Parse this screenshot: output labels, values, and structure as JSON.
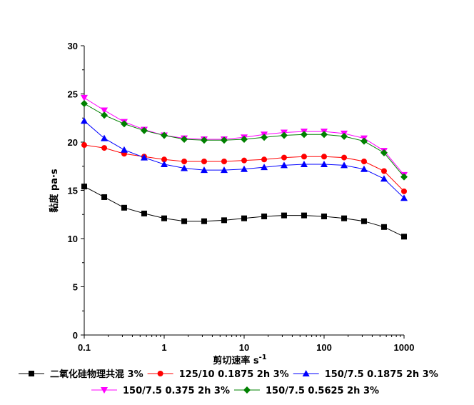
{
  "chart_data": {
    "type": "line",
    "xlabel": "剪切速率 s",
    "xlabel_superscript": "-1",
    "ylabel": "黏度 pa·s",
    "x_scale": "log",
    "xlim": [
      0.1,
      1000
    ],
    "ylim": [
      0,
      30
    ],
    "x_ticks": [
      0.1,
      1,
      10,
      100,
      1000
    ],
    "x_tick_labels": [
      "0.1",
      "1",
      "10",
      "100",
      "1000"
    ],
    "y_ticks": [
      0,
      5,
      10,
      15,
      20,
      25,
      30
    ],
    "y_tick_labels": [
      "0",
      "5",
      "10",
      "15",
      "20",
      "25",
      "30"
    ],
    "grid": false,
    "legend_position": "bottom",
    "x": [
      0.1,
      0.178,
      0.316,
      0.562,
      1,
      1.78,
      3.16,
      5.62,
      10,
      17.8,
      31.6,
      56.2,
      100,
      178,
      316,
      562,
      1000
    ],
    "series": [
      {
        "name": "二氧化硅物理共混 3%",
        "color": "#000000",
        "marker": "square",
        "values": [
          15.4,
          14.3,
          13.2,
          12.6,
          12.1,
          11.8,
          11.8,
          11.9,
          12.1,
          12.3,
          12.4,
          12.4,
          12.3,
          12.1,
          11.8,
          11.2,
          10.2
        ]
      },
      {
        "name": "125/10 0.1875 2h 3%",
        "color": "#ff0000",
        "marker": "circle",
        "values": [
          19.7,
          19.4,
          18.8,
          18.5,
          18.2,
          18.0,
          18.0,
          18.0,
          18.1,
          18.2,
          18.4,
          18.5,
          18.5,
          18.4,
          18.0,
          17.0,
          14.9
        ]
      },
      {
        "name": "150/7.5 0.1875 2h 3%",
        "color": "#0000ff",
        "marker": "triangle-up",
        "values": [
          22.2,
          20.4,
          19.2,
          18.4,
          17.7,
          17.3,
          17.1,
          17.1,
          17.2,
          17.4,
          17.6,
          17.7,
          17.7,
          17.6,
          17.2,
          16.2,
          14.2
        ]
      },
      {
        "name": "150/7.5 0.375 2h 3%",
        "color": "#ff00ff",
        "marker": "triangle-down",
        "values": [
          24.6,
          23.3,
          22.1,
          21.3,
          20.7,
          20.4,
          20.3,
          20.3,
          20.5,
          20.8,
          21.0,
          21.1,
          21.1,
          20.9,
          20.4,
          19.1,
          16.6
        ]
      },
      {
        "name": "150/7.5 0.5625 2h 3%",
        "color": "#008000",
        "marker": "diamond",
        "values": [
          24.0,
          22.8,
          21.9,
          21.2,
          20.7,
          20.3,
          20.2,
          20.2,
          20.3,
          20.5,
          20.7,
          20.8,
          20.8,
          20.6,
          20.1,
          18.9,
          16.4
        ]
      }
    ]
  }
}
